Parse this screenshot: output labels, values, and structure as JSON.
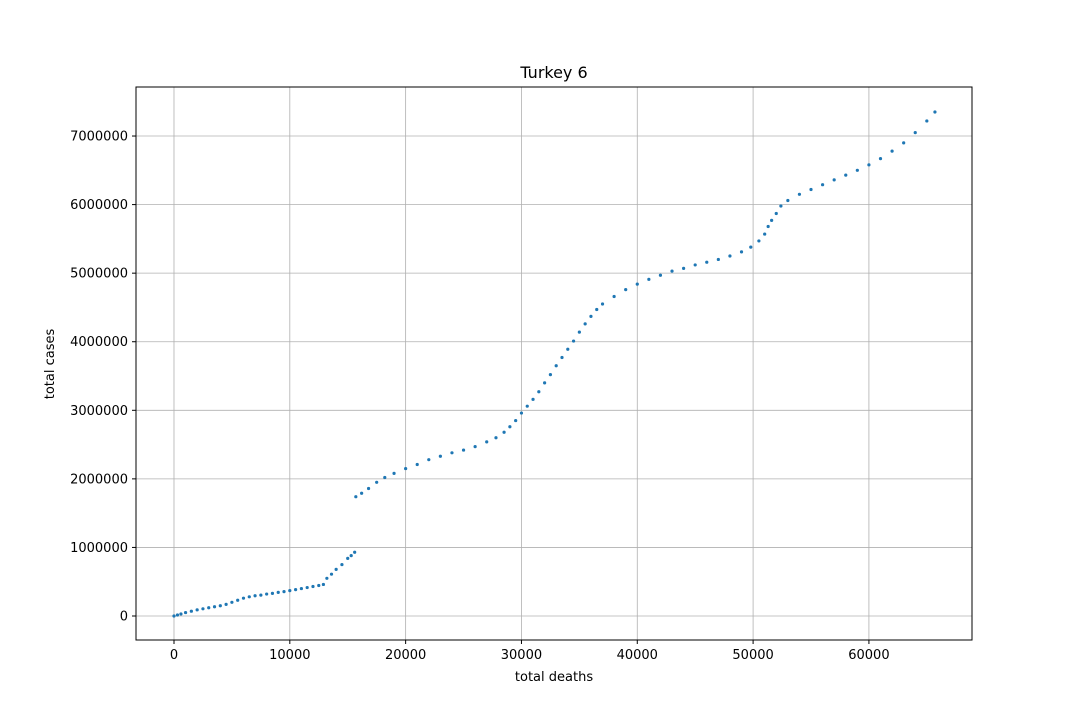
{
  "chart_data": {
    "type": "scatter",
    "title": "Turkey 6",
    "xlabel": "total deaths",
    "ylabel": "total cases",
    "x": [
      0,
      300,
      600,
      1000,
      1500,
      2000,
      2500,
      3000,
      3500,
      4000,
      4500,
      5000,
      5500,
      6000,
      6500,
      7000,
      7500,
      8000,
      8500,
      9000,
      9500,
      10000,
      10500,
      11000,
      11500,
      12000,
      12500,
      12900,
      13200,
      13600,
      14000,
      14500,
      15000,
      15300,
      15600,
      15700,
      16200,
      16800,
      17500,
      18200,
      19000,
      20000,
      21000,
      22000,
      23000,
      24000,
      25000,
      26000,
      27000,
      27800,
      28500,
      29000,
      29500,
      30000,
      30500,
      31000,
      31500,
      32000,
      32500,
      33000,
      33500,
      34000,
      34500,
      35000,
      35500,
      36000,
      36500,
      37000,
      38000,
      39000,
      40000,
      41000,
      42000,
      43000,
      44000,
      45000,
      46000,
      47000,
      48000,
      49000,
      49800,
      50500,
      51000,
      51300,
      51600,
      52000,
      52400,
      53000,
      54000,
      55000,
      56000,
      57000,
      58000,
      59000,
      60000,
      61000,
      62000,
      63000,
      64000,
      65000,
      65700
    ],
    "values": [
      0,
      15000,
      30000,
      50000,
      70000,
      90000,
      105000,
      120000,
      135000,
      150000,
      170000,
      200000,
      230000,
      260000,
      280000,
      295000,
      305000,
      320000,
      330000,
      345000,
      355000,
      370000,
      385000,
      400000,
      415000,
      430000,
      445000,
      460000,
      550000,
      610000,
      680000,
      750000,
      840000,
      880000,
      930000,
      1740000,
      1790000,
      1860000,
      1950000,
      2020000,
      2080000,
      2150000,
      2210000,
      2280000,
      2330000,
      2380000,
      2420000,
      2470000,
      2540000,
      2600000,
      2680000,
      2760000,
      2850000,
      2960000,
      3060000,
      3160000,
      3270000,
      3400000,
      3520000,
      3650000,
      3770000,
      3890000,
      4010000,
      4140000,
      4260000,
      4370000,
      4470000,
      4550000,
      4660000,
      4760000,
      4840000,
      4910000,
      4970000,
      5030000,
      5070000,
      5120000,
      5160000,
      5200000,
      5250000,
      5310000,
      5380000,
      5470000,
      5570000,
      5680000,
      5770000,
      5870000,
      5980000,
      6060000,
      6150000,
      6220000,
      6290000,
      6360000,
      6430000,
      6500000,
      6580000,
      6670000,
      6780000,
      6900000,
      7050000,
      7220000,
      7350000
    ],
    "color": "#1f77b4",
    "xlim": [
      -3280,
      68900
    ],
    "xticks": [
      0,
      10000,
      20000,
      30000,
      40000,
      50000,
      60000
    ],
    "ylim": [
      -350000,
      7715000
    ],
    "yticks": [
      0,
      1000000,
      2000000,
      3000000,
      4000000,
      5000000,
      6000000,
      7000000
    ],
    "grid": true
  }
}
